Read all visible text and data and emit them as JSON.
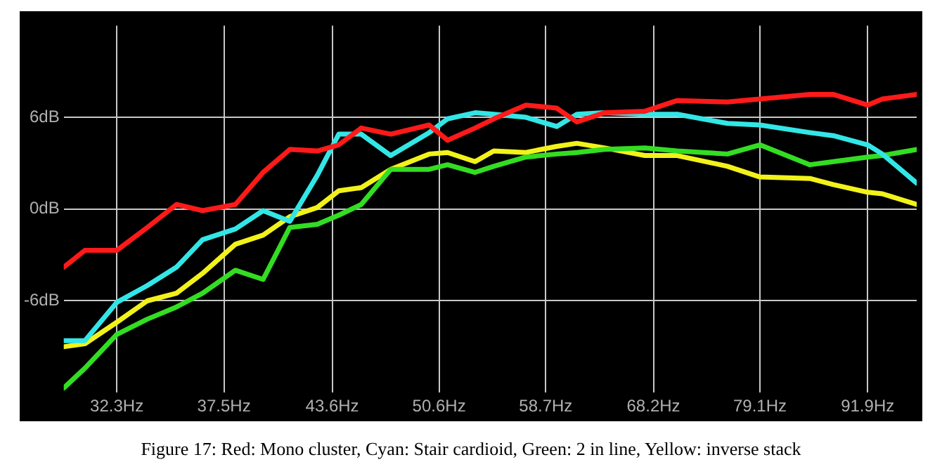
{
  "chart_data": {
    "type": "line",
    "log": "x",
    "x": [
      30.0,
      30.9,
      32.3,
      33.7,
      35.1,
      36.4,
      38.1,
      39.6,
      41.1,
      42.7,
      44.0,
      45.4,
      47.3,
      49.9,
      51.2,
      53.2,
      54.6,
      57.1,
      59.6,
      61.3,
      63.7,
      67.4,
      70.5,
      75.6,
      79.1,
      84.8,
      87.6,
      91.9,
      93.8,
      98.4
    ],
    "series": [
      {
        "color": "#ff1a1a",
        "values": [
          -3.8,
          -2.7,
          -2.7,
          -1.2,
          0.3,
          -0.1,
          0.3,
          2.4,
          3.9,
          3.8,
          4.2,
          5.3,
          4.9,
          5.5,
          4.5,
          5.3,
          5.9,
          6.8,
          6.6,
          5.7,
          6.3,
          6.4,
          7.1,
          7.0,
          7.2,
          7.5,
          7.5,
          6.8,
          7.2,
          7.5
        ]
      },
      {
        "color": "#33e6e6",
        "values": [
          -8.6,
          -8.6,
          -6.1,
          -5.0,
          -3.8,
          -2.0,
          -1.3,
          -0.1,
          -0.8,
          2.2,
          4.9,
          4.9,
          3.5,
          5.0,
          5.9,
          6.3,
          6.2,
          6.0,
          5.4,
          6.2,
          6.3,
          6.2,
          6.2,
          5.6,
          5.5,
          5.0,
          4.8,
          4.2,
          3.6,
          1.7
        ]
      },
      {
        "color": "#33dd22",
        "values": [
          -11.7,
          -10.4,
          -8.2,
          -7.2,
          -6.4,
          -5.5,
          -4.0,
          -4.6,
          -1.2,
          -1.0,
          -0.4,
          0.3,
          2.6,
          2.6,
          2.9,
          2.4,
          2.8,
          3.4,
          3.6,
          3.7,
          3.9,
          4.0,
          3.8,
          3.6,
          4.2,
          2.9,
          3.1,
          3.4,
          3.5,
          3.9
        ]
      },
      {
        "color": "#f2f21a",
        "values": [
          -9.0,
          -8.8,
          -7.4,
          -6.0,
          -5.5,
          -4.2,
          -2.3,
          -1.7,
          -0.5,
          0.1,
          1.2,
          1.4,
          2.6,
          3.6,
          3.7,
          3.1,
          3.8,
          3.7,
          4.1,
          4.3,
          4.0,
          3.5,
          3.5,
          2.8,
          2.1,
          2.0,
          1.6,
          1.1,
          1.0,
          0.3
        ]
      }
    ],
    "xlim": [
      30,
      98.4
    ],
    "xticks": [
      {
        "value": 32.3,
        "label": "32.3Hz"
      },
      {
        "value": 37.5,
        "label": "37.5Hz"
      },
      {
        "value": 43.6,
        "label": "43.6Hz"
      },
      {
        "value": 50.6,
        "label": "50.6Hz"
      },
      {
        "value": 58.7,
        "label": "58.7Hz"
      },
      {
        "value": 68.2,
        "label": "68.2Hz"
      },
      {
        "value": 79.1,
        "label": "79.1Hz"
      },
      {
        "value": 91.9,
        "label": "91.9Hz"
      }
    ],
    "ylim": [
      -12,
      12
    ],
    "yticks": [
      {
        "value": -6,
        "label": "-6dB"
      },
      {
        "value": 0,
        "label": "0dB"
      },
      {
        "value": 6,
        "label": "6dB"
      }
    ],
    "grid": true,
    "legend": false,
    "marker": "none",
    "line_style": "solid",
    "annotations": [
      "Figure 17: Red: Mono cluster, Cyan: Stair cardioid, Green: 2 in line, Yellow: inverse stack"
    ]
  }
}
